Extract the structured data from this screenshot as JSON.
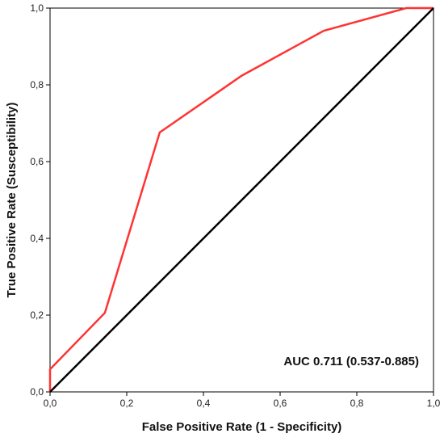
{
  "chart_data": {
    "type": "line",
    "xlabel": "False Positive Rate (1 - Specificity)",
    "ylabel": "True Positive Rate (Susceptibility)",
    "xlim": [
      0,
      1
    ],
    "ylim": [
      0,
      1
    ],
    "x_ticks": [
      0,
      0.2,
      0.4,
      0.6,
      0.8,
      1.0
    ],
    "y_ticks": [
      0,
      0.2,
      0.4,
      0.6,
      0.8,
      1.0
    ],
    "x_tick_labels": [
      "0,0",
      "0,2",
      "0,4",
      "0,6",
      "0,8",
      "1,0"
    ],
    "y_tick_labels": [
      "0,0",
      "0,2",
      "0,4",
      "0,6",
      "0,8",
      "1,0"
    ],
    "grid": false,
    "annotation": "AUC 0.711 (0.537-0.885)",
    "series": [
      {
        "color": "#ff3333",
        "x": [
          0,
          0,
          0.143,
          0.286,
          0.5,
          0.714,
          0.929,
          1.0
        ],
        "y": [
          0,
          0.059,
          0.206,
          0.676,
          0.824,
          0.941,
          1.0,
          1.0
        ]
      },
      {
        "color": "#000000",
        "x": [
          0,
          1
        ],
        "y": [
          0,
          1
        ]
      }
    ]
  }
}
